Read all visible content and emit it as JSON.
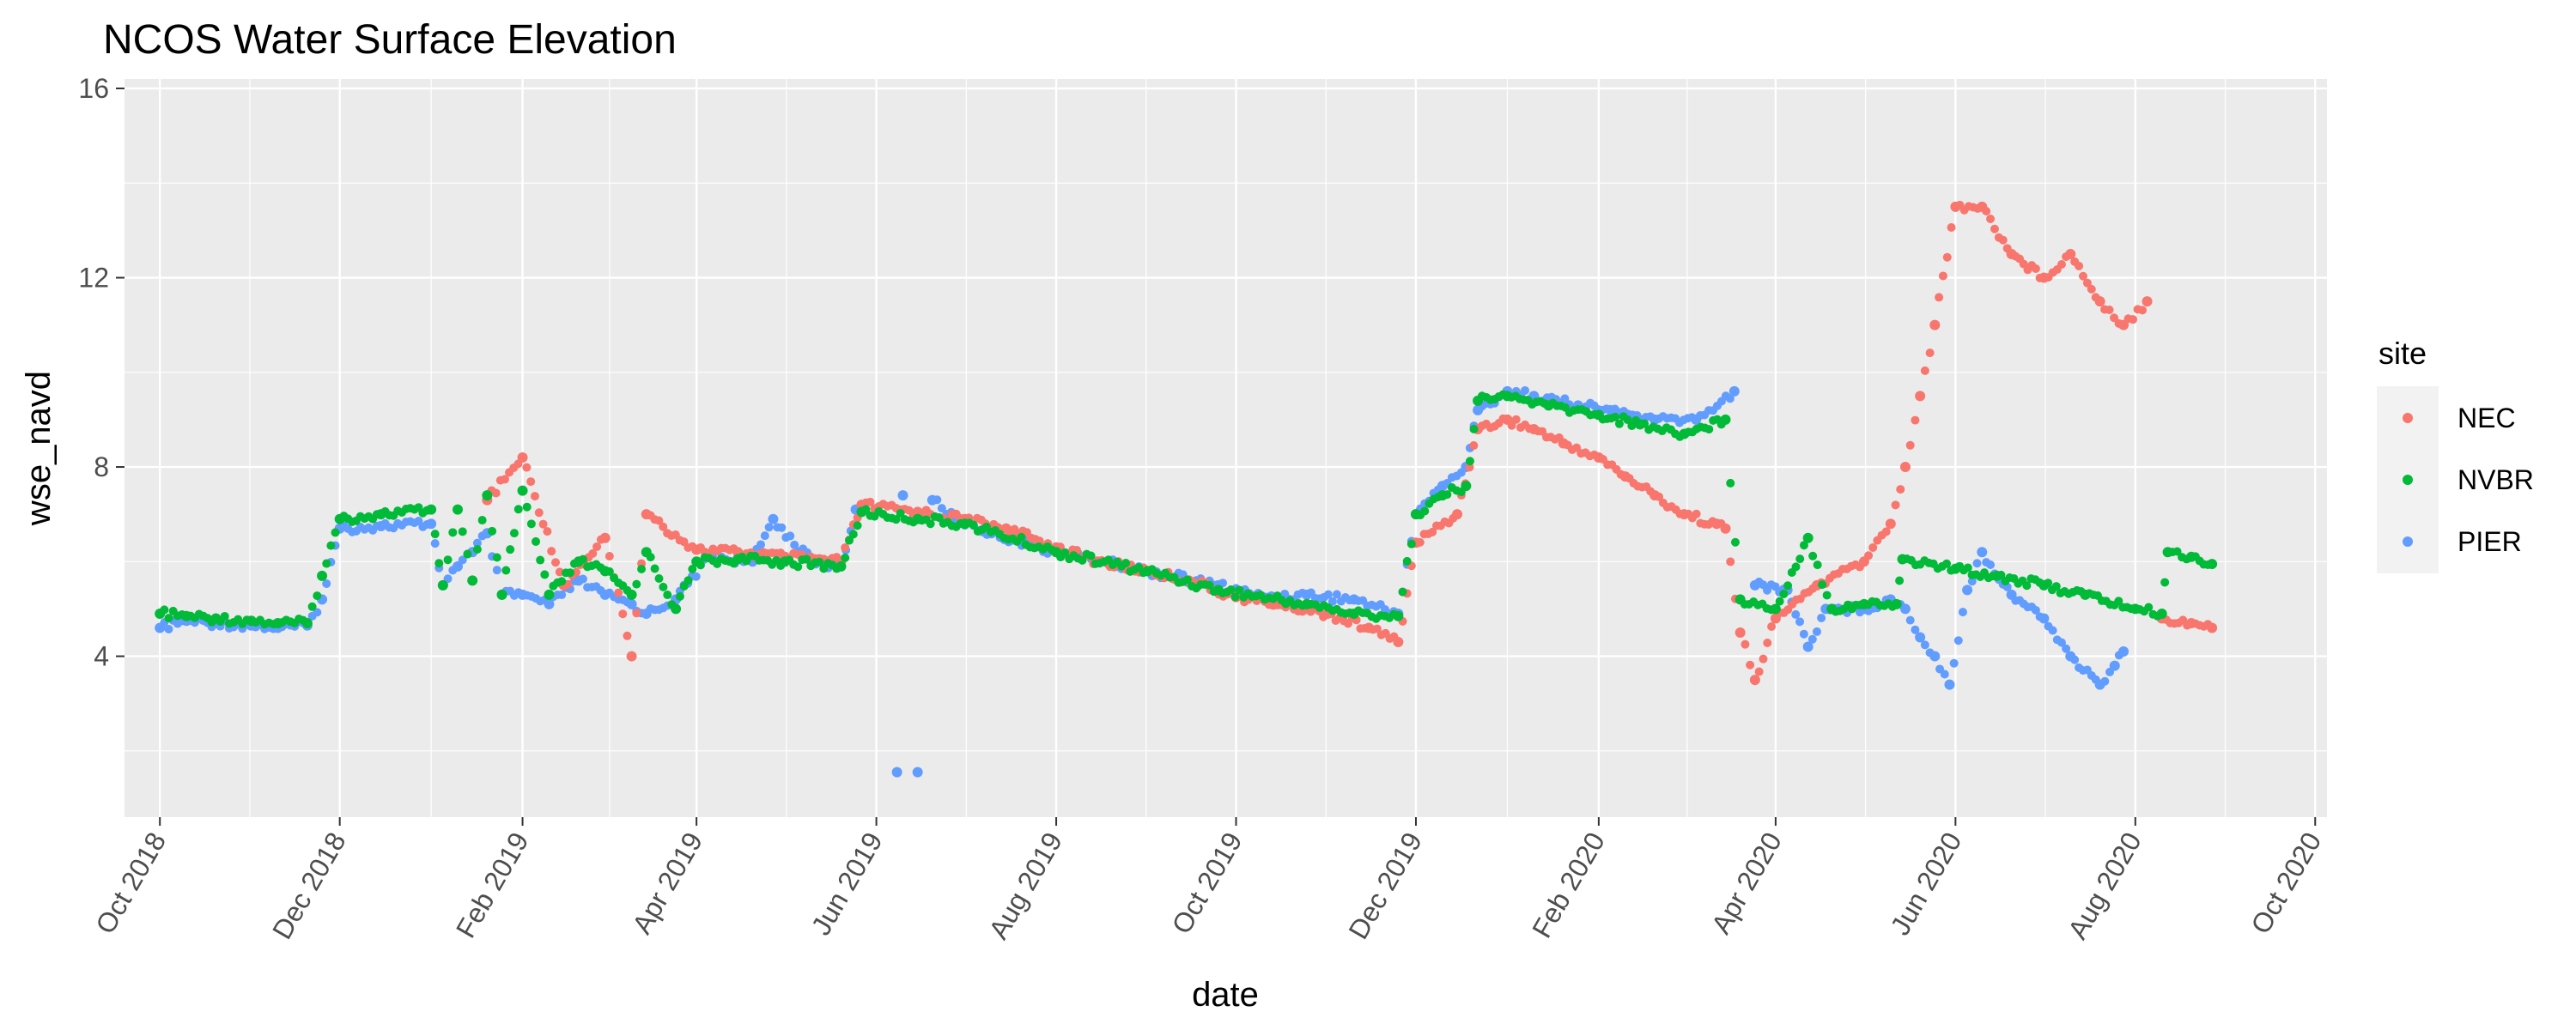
{
  "chart_data": {
    "type": "scatter",
    "title": "NCOS Water Surface Elevation",
    "xlabel": "date",
    "ylabel": "wse_navd",
    "xlim": [
      "2018-09-19",
      "2020-10-05"
    ],
    "ylim": [
      0.6,
      16.2
    ],
    "x_ticks": [
      {
        "date": "2018-10-01",
        "label": "Oct 2018"
      },
      {
        "date": "2018-12-01",
        "label": "Dec 2018"
      },
      {
        "date": "2019-02-01",
        "label": "Feb 2019"
      },
      {
        "date": "2019-04-01",
        "label": "Apr 2019"
      },
      {
        "date": "2019-06-01",
        "label": "Jun 2019"
      },
      {
        "date": "2019-08-01",
        "label": "Aug 2019"
      },
      {
        "date": "2019-10-01",
        "label": "Oct 2019"
      },
      {
        "date": "2019-12-01",
        "label": "Dec 2019"
      },
      {
        "date": "2020-02-01",
        "label": "Feb 2020"
      },
      {
        "date": "2020-04-01",
        "label": "Apr 2020"
      },
      {
        "date": "2020-06-01",
        "label": "Jun 2020"
      },
      {
        "date": "2020-08-01",
        "label": "Aug 2020"
      },
      {
        "date": "2020-10-01",
        "label": "Oct 2020"
      }
    ],
    "y_ticks": [
      4,
      8,
      12,
      16
    ],
    "grid": true,
    "legend": {
      "title": "site",
      "position": "right"
    },
    "series": [
      {
        "name": "PIER",
        "color": "#619CFF",
        "points": [
          [
            "2018-10-01",
            4.6
          ],
          [
            "2018-10-10",
            4.75
          ],
          [
            "2018-10-20",
            4.7
          ],
          [
            "2018-11-01",
            4.65
          ],
          [
            "2018-11-10",
            4.6
          ],
          [
            "2018-11-20",
            4.65
          ],
          [
            "2018-11-25",
            5.2
          ],
          [
            "2018-12-01",
            6.7
          ],
          [
            "2018-12-15",
            6.75
          ],
          [
            "2019-01-01",
            6.8
          ],
          [
            "2019-01-05",
            5.5
          ],
          [
            "2019-01-10",
            5.9
          ],
          [
            "2019-01-15",
            6.2
          ],
          [
            "2019-01-20",
            6.6
          ],
          [
            "2019-01-25",
            5.3
          ],
          [
            "2019-02-01",
            5.3
          ],
          [
            "2019-02-10",
            5.1
          ],
          [
            "2019-02-20",
            5.6
          ],
          [
            "2019-03-01",
            5.3
          ],
          [
            "2019-03-10",
            5.1
          ],
          [
            "2019-03-15",
            4.9
          ],
          [
            "2019-03-25",
            5.2
          ],
          [
            "2019-04-05",
            6.1
          ],
          [
            "2019-04-20",
            6.0
          ],
          [
            "2019-04-27",
            6.9
          ],
          [
            "2019-05-10",
            6.0
          ],
          [
            "2019-05-20",
            5.9
          ],
          [
            "2019-05-25",
            7.1
          ],
          [
            "2019-06-10",
            7.4
          ],
          [
            "2019-06-20",
            7.3
          ],
          [
            "2019-06-28",
            6.9
          ],
          [
            "2019-06-08",
            1.55
          ],
          [
            "2019-06-15",
            1.55
          ],
          [
            "2019-07-10",
            6.6
          ],
          [
            "2019-08-01",
            6.2
          ],
          [
            "2019-09-01",
            5.8
          ],
          [
            "2019-09-25",
            5.5
          ],
          [
            "2019-10-10",
            5.25
          ],
          [
            "2019-10-25",
            5.3
          ],
          [
            "2019-11-10",
            5.2
          ],
          [
            "2019-11-25",
            4.9
          ],
          [
            "2019-12-01",
            7.0
          ],
          [
            "2019-12-10",
            7.6
          ],
          [
            "2019-12-18",
            8.0
          ],
          [
            "2019-12-22",
            9.2
          ],
          [
            "2020-01-01",
            9.6
          ],
          [
            "2020-01-10",
            9.5
          ],
          [
            "2020-01-25",
            9.3
          ],
          [
            "2020-02-05",
            9.2
          ],
          [
            "2020-02-20",
            9.0
          ],
          [
            "2020-03-05",
            9.0
          ],
          [
            "2020-03-18",
            9.6
          ],
          [
            "2020-03-25",
            5.5
          ],
          [
            "2020-04-05",
            5.4
          ],
          [
            "2020-04-12",
            4.2
          ],
          [
            "2020-04-18",
            5.0
          ],
          [
            "2020-05-01",
            5.0
          ],
          [
            "2020-05-10",
            5.2
          ],
          [
            "2020-05-15",
            5.0
          ],
          [
            "2020-05-20",
            4.4
          ],
          [
            "2020-05-25",
            4.0
          ],
          [
            "2020-05-30",
            3.4
          ],
          [
            "2020-06-05",
            5.4
          ],
          [
            "2020-06-10",
            6.2
          ],
          [
            "2020-06-20",
            5.3
          ],
          [
            "2020-07-01",
            4.8
          ],
          [
            "2020-07-10",
            4.0
          ],
          [
            "2020-07-20",
            3.4
          ],
          [
            "2020-07-25",
            3.8
          ],
          [
            "2020-07-28",
            4.1
          ]
        ]
      },
      {
        "name": "NEC",
        "color": "#F8766D",
        "points": [
          [
            "2019-01-20",
            7.3
          ],
          [
            "2019-02-01",
            8.2
          ],
          [
            "2019-02-15",
            5.5
          ],
          [
            "2019-03-01",
            6.5
          ],
          [
            "2019-03-10",
            4.0
          ],
          [
            "2019-03-15",
            7.0
          ],
          [
            "2019-04-01",
            6.25
          ],
          [
            "2019-04-15",
            6.2
          ],
          [
            "2019-05-01",
            6.1
          ],
          [
            "2019-05-20",
            6.0
          ],
          [
            "2019-05-27",
            7.2
          ],
          [
            "2019-06-15",
            7.05
          ],
          [
            "2019-07-01",
            6.9
          ],
          [
            "2019-07-15",
            6.7
          ],
          [
            "2019-08-01",
            6.3
          ],
          [
            "2019-08-15",
            6.0
          ],
          [
            "2019-09-01",
            5.8
          ],
          [
            "2019-09-15",
            5.6
          ],
          [
            "2019-10-01",
            5.25
          ],
          [
            "2019-10-15",
            5.1
          ],
          [
            "2019-11-01",
            4.9
          ],
          [
            "2019-11-15",
            4.6
          ],
          [
            "2019-11-25",
            4.3
          ],
          [
            "2019-12-01",
            6.4
          ],
          [
            "2019-12-15",
            7.0
          ],
          [
            "2019-12-22",
            8.8
          ],
          [
            "2020-01-01",
            9.0
          ],
          [
            "2020-01-10",
            8.8
          ],
          [
            "2020-01-20",
            8.5
          ],
          [
            "2020-02-01",
            8.2
          ],
          [
            "2020-02-10",
            7.8
          ],
          [
            "2020-02-20",
            7.4
          ],
          [
            "2020-03-01",
            7.0
          ],
          [
            "2020-03-12",
            6.8
          ],
          [
            "2020-03-15",
            6.7
          ],
          [
            "2020-03-20",
            4.5
          ],
          [
            "2020-03-25",
            3.5
          ],
          [
            "2020-04-01",
            4.8
          ],
          [
            "2020-04-15",
            5.5
          ],
          [
            "2020-05-01",
            6.0
          ],
          [
            "2020-05-10",
            6.8
          ],
          [
            "2020-05-15",
            8.0
          ],
          [
            "2020-05-20",
            9.5
          ],
          [
            "2020-05-25",
            11.0
          ],
          [
            "2020-06-01",
            13.5
          ],
          [
            "2020-06-10",
            13.5
          ],
          [
            "2020-06-20",
            12.5
          ],
          [
            "2020-07-01",
            12.0
          ],
          [
            "2020-07-10",
            12.5
          ],
          [
            "2020-07-20",
            11.5
          ],
          [
            "2020-07-28",
            11.0
          ],
          [
            "2020-08-05",
            11.5
          ],
          [
            "2020-08-10",
            4.8
          ],
          [
            "2020-08-20",
            4.7
          ],
          [
            "2020-08-27",
            4.6
          ]
        ]
      },
      {
        "name": "NVBR",
        "color": "#00BA38",
        "points": [
          [
            "2018-10-01",
            4.9
          ],
          [
            "2018-10-10",
            4.85
          ],
          [
            "2018-10-20",
            4.8
          ],
          [
            "2018-11-01",
            4.75
          ],
          [
            "2018-11-10",
            4.7
          ],
          [
            "2018-11-20",
            4.7
          ],
          [
            "2018-11-25",
            5.7
          ],
          [
            "2018-12-01",
            6.9
          ],
          [
            "2018-12-15",
            7.0
          ],
          [
            "2019-01-01",
            7.1
          ],
          [
            "2019-01-05",
            5.5
          ],
          [
            "2019-01-10",
            7.1
          ],
          [
            "2019-01-15",
            5.6
          ],
          [
            "2019-01-20",
            7.4
          ],
          [
            "2019-01-25",
            5.3
          ],
          [
            "2019-02-01",
            7.5
          ],
          [
            "2019-02-10",
            5.3
          ],
          [
            "2019-02-20",
            6.0
          ],
          [
            "2019-03-01",
            5.8
          ],
          [
            "2019-03-10",
            5.3
          ],
          [
            "2019-03-15",
            6.2
          ],
          [
            "2019-03-25",
            5.0
          ],
          [
            "2019-04-01",
            6.0
          ],
          [
            "2019-04-15",
            6.05
          ],
          [
            "2019-05-01",
            6.0
          ],
          [
            "2019-05-20",
            5.9
          ],
          [
            "2019-05-27",
            7.05
          ],
          [
            "2019-06-15",
            6.9
          ],
          [
            "2019-07-01",
            6.8
          ],
          [
            "2019-08-01",
            6.2
          ],
          [
            "2019-09-01",
            5.8
          ],
          [
            "2019-09-25",
            5.4
          ],
          [
            "2019-10-25",
            5.1
          ],
          [
            "2019-11-10",
            4.9
          ],
          [
            "2019-11-25",
            4.85
          ],
          [
            "2019-12-01",
            7.0
          ],
          [
            "2019-12-10",
            7.4
          ],
          [
            "2019-12-18",
            7.6
          ],
          [
            "2019-12-22",
            9.4
          ],
          [
            "2020-01-01",
            9.5
          ],
          [
            "2020-01-15",
            9.3
          ],
          [
            "2020-02-01",
            9.1
          ],
          [
            "2020-02-15",
            8.9
          ],
          [
            "2020-03-01",
            8.7
          ],
          [
            "2020-03-15",
            9.0
          ],
          [
            "2020-03-20",
            5.2
          ],
          [
            "2020-04-01",
            5.0
          ],
          [
            "2020-04-12",
            6.5
          ],
          [
            "2020-04-20",
            5.0
          ],
          [
            "2020-05-01",
            5.1
          ],
          [
            "2020-05-12",
            5.1
          ],
          [
            "2020-05-14",
            6.05
          ],
          [
            "2020-06-01",
            5.85
          ],
          [
            "2020-06-15",
            5.7
          ],
          [
            "2020-07-01",
            5.5
          ],
          [
            "2020-07-15",
            5.3
          ],
          [
            "2020-08-01",
            5.0
          ],
          [
            "2020-08-10",
            4.9
          ],
          [
            "2020-08-12",
            6.2
          ],
          [
            "2020-08-20",
            6.1
          ],
          [
            "2020-08-27",
            5.95
          ]
        ]
      }
    ]
  }
}
